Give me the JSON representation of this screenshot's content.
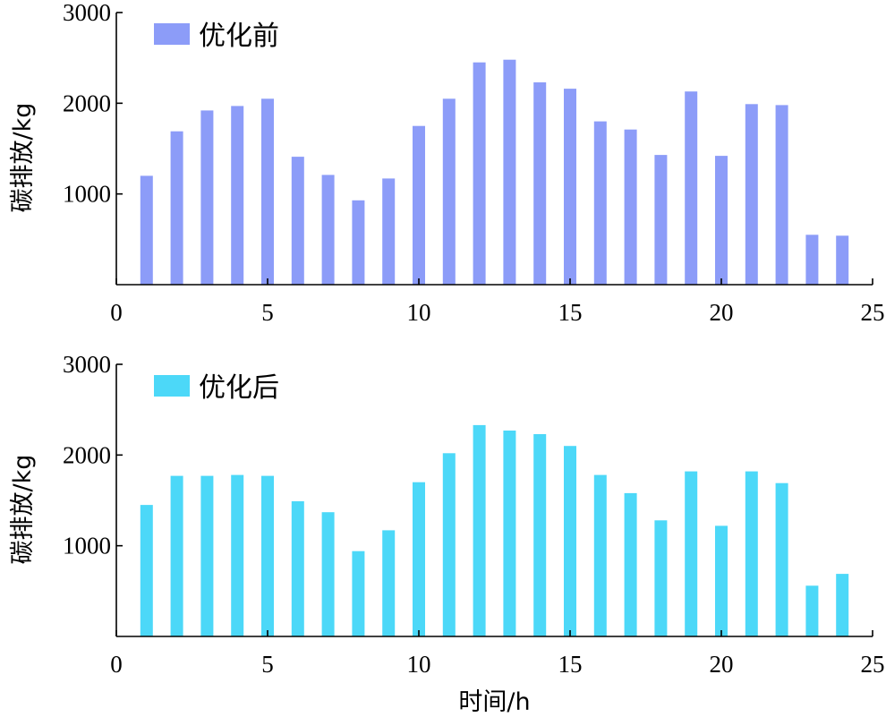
{
  "chart_data": [
    {
      "type": "bar",
      "legend": "优化前",
      "legend_position": "top-left",
      "ylabel": "碳排放/kg",
      "xlabel": "",
      "color": "#8c9cf8",
      "xlim": [
        0,
        25
      ],
      "ylim": [
        0,
        3000
      ],
      "xticks": [
        "0",
        "5",
        "10",
        "15",
        "20",
        "25"
      ],
      "yticks": [
        "1000",
        "2000",
        "3000"
      ],
      "x": [
        1,
        2,
        3,
        4,
        5,
        6,
        7,
        8,
        9,
        10,
        11,
        12,
        13,
        14,
        15,
        16,
        17,
        18,
        19,
        20,
        21,
        22,
        23,
        24
      ],
      "values": [
        1200,
        1690,
        1920,
        1970,
        2050,
        1410,
        1210,
        930,
        1170,
        1750,
        2050,
        2450,
        2480,
        2230,
        2160,
        1800,
        1710,
        1430,
        2130,
        1420,
        1990,
        1980,
        550,
        540
      ]
    },
    {
      "type": "bar",
      "legend": "优化后",
      "legend_position": "top-left",
      "ylabel": "碳排放/kg",
      "xlabel": "时间/h",
      "color": "#4cd8f8",
      "xlim": [
        0,
        25
      ],
      "ylim": [
        0,
        3000
      ],
      "xticks": [
        "0",
        "5",
        "10",
        "15",
        "20",
        "25"
      ],
      "yticks": [
        "1000",
        "2000",
        "3000"
      ],
      "x": [
        1,
        2,
        3,
        4,
        5,
        6,
        7,
        8,
        9,
        10,
        11,
        12,
        13,
        14,
        15,
        16,
        17,
        18,
        19,
        20,
        21,
        22,
        23,
        24
      ],
      "values": [
        1450,
        1770,
        1770,
        1780,
        1770,
        1490,
        1370,
        940,
        1170,
        1700,
        2020,
        2330,
        2270,
        2230,
        2100,
        1780,
        1580,
        1280,
        1820,
        1220,
        1820,
        1690,
        560,
        690
      ]
    }
  ]
}
